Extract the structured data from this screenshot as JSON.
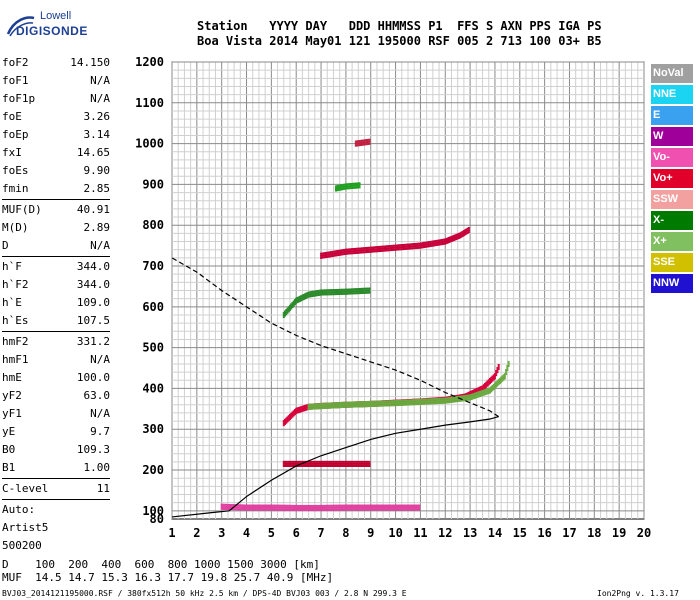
{
  "logo": {
    "line1": "Lowell",
    "line2": "DIGISONDE"
  },
  "header": {
    "labels": "Station   YYYY DAY   DDD HHMMSS P1  FFS S AXN PPS IGA PS",
    "values": "Boa Vista 2014 May01 121 195000 RSF 005 2 713 100 03+ B5"
  },
  "params": [
    {
      "name": "foF2",
      "value": "14.150"
    },
    {
      "name": "foF1",
      "value": "N/A"
    },
    {
      "name": "foF1p",
      "value": "N/A"
    },
    {
      "name": "foE",
      "value": "3.26"
    },
    {
      "name": "foEp",
      "value": "3.14"
    },
    {
      "name": "fxI",
      "value": "14.65"
    },
    {
      "name": "foEs",
      "value": "9.90"
    },
    {
      "name": "fmin",
      "value": "2.85"
    },
    {
      "name": "MUF(D)",
      "value": "40.91"
    },
    {
      "name": "M(D)",
      "value": "2.89"
    },
    {
      "name": "D",
      "value": "N/A"
    },
    {
      "name": "h`F",
      "value": "344.0"
    },
    {
      "name": "h`F2",
      "value": "344.0"
    },
    {
      "name": "h`E",
      "value": "109.0"
    },
    {
      "name": "h`Es",
      "value": "107.5"
    },
    {
      "name": "hmF2",
      "value": "331.2"
    },
    {
      "name": "hmF1",
      "value": "N/A"
    },
    {
      "name": "hmE",
      "value": "100.0"
    },
    {
      "name": "yF2",
      "value": "63.0"
    },
    {
      "name": "yF1",
      "value": "N/A"
    },
    {
      "name": "yE",
      "value": "9.7"
    },
    {
      "name": "B0",
      "value": "109.3"
    },
    {
      "name": "B1",
      "value": "1.00"
    },
    {
      "name": "C-level",
      "value": "11"
    }
  ],
  "auto": {
    "line1": "Auto:",
    "line2": "Artist5",
    "line3": "500200"
  },
  "legend": [
    {
      "label": "NoVal",
      "color": "#a0a0a0"
    },
    {
      "label": "NNE",
      "color": "#1ad4f2"
    },
    {
      "label": "E",
      "color": "#3aa0f0"
    },
    {
      "label": "W",
      "color": "#a0009a"
    },
    {
      "label": "Vo-",
      "color": "#f050b0"
    },
    {
      "label": "Vo+",
      "color": "#e0002a"
    },
    {
      "label": "SSW",
      "color": "#f2a0a0"
    },
    {
      "label": "X-",
      "color": "#007a00"
    },
    {
      "label": "X+",
      "color": "#80c060"
    },
    {
      "label": "SSE",
      "color": "#d0c000"
    },
    {
      "label": "NNW",
      "color": "#2010d0"
    }
  ],
  "footer": {
    "distance_row": "D    100  200  400  600  800 1000 1500 3000 [km]",
    "muf_row": "MUF  14.5 14.7 15.3 16.3 17.7 19.8 25.7 40.9 [MHz]"
  },
  "meta": {
    "file": "BVJ03_2014121195000.RSF / 380fx512h 50 kHz 2.5 km / DPS-4D BVJ03 003 / 2.8 N 299.3 E",
    "version": "Ion2Png v. 1.3.17"
  },
  "chart_data": {
    "type": "scatter",
    "xlim": [
      1,
      20
    ],
    "ylim": [
      80,
      1200
    ],
    "x_ticks": [
      "1",
      "2",
      "3",
      "4",
      "5",
      "6",
      "7",
      "8",
      "9",
      "10",
      "11",
      "12",
      "13",
      "14",
      "15",
      "16",
      "17",
      "18",
      "19",
      "20"
    ],
    "y_ticks": [
      "80",
      "100",
      "200",
      "300",
      "400",
      "500",
      "600",
      "700",
      "800",
      "900",
      "1000",
      "1100",
      "1200"
    ],
    "grid": true,
    "traces": [
      {
        "name": "F2 O-trace",
        "color": "#d8003a",
        "x": [
          5.5,
          6.0,
          6.5,
          7.0,
          8.0,
          9.0,
          10.0,
          11.0,
          12.0,
          12.8,
          13.5,
          14.0,
          14.2
        ],
        "y": [
          315,
          345,
          355,
          357,
          360,
          362,
          365,
          368,
          372,
          380,
          400,
          430,
          460
        ]
      },
      {
        "name": "F2 X-trace",
        "color": "#6aaa40",
        "x": [
          6.5,
          8.0,
          10.0,
          12.0,
          13.0,
          13.8,
          14.4,
          14.6
        ],
        "y": [
          355,
          360,
          364,
          370,
          378,
          395,
          430,
          470
        ]
      },
      {
        "name": "second hop",
        "color": "#c8003a",
        "x": [
          7.0,
          8.0,
          9.0,
          10.0,
          11.0,
          12.0,
          12.6,
          13.0
        ],
        "y": [
          725,
          735,
          740,
          745,
          750,
          760,
          775,
          790
        ]
      },
      {
        "name": "second hop upper",
        "color": "#2a8a2a",
        "x": [
          5.5,
          6.0,
          6.5,
          7.0,
          8.0,
          9.0
        ],
        "y": [
          580,
          615,
          630,
          635,
          637,
          640
        ]
      },
      {
        "name": "E/Es trace",
        "color": "#e040a0",
        "x": [
          3.0,
          4.0,
          5.0,
          6.0,
          7.0,
          8.0,
          9.0,
          10.0,
          11.0
        ],
        "y": [
          110,
          108,
          108,
          107,
          107,
          108,
          108,
          108,
          108
        ]
      },
      {
        "name": "Es 2x",
        "color": "#c00030",
        "x": [
          5.5,
          6.0,
          7.0,
          8.0,
          9.0
        ],
        "y": [
          215,
          215,
          215,
          215,
          215
        ]
      },
      {
        "name": "2F3 fragment",
        "color": "#20a020",
        "x": [
          7.6,
          8.0,
          8.6
        ],
        "y": [
          890,
          895,
          898
        ]
      },
      {
        "name": "3F fragment",
        "color": "#c02040",
        "x": [
          8.4,
          9.0
        ],
        "y": [
          1000,
          1005
        ]
      }
    ],
    "profile": {
      "name": "electron density profile",
      "color": "#000000",
      "x": [
        1.0,
        2.5,
        3.3,
        4.0,
        5.0,
        6.0,
        7.0,
        8.0,
        9.0,
        10.0,
        11.0,
        12.0,
        13.0,
        13.8,
        14.15
      ],
      "y": [
        85,
        95,
        100,
        135,
        175,
        210,
        235,
        255,
        275,
        290,
        300,
        310,
        318,
        325,
        331
      ]
    },
    "topside": {
      "name": "topside extrapolation",
      "color": "#000000",
      "x": [
        14.15,
        13.8,
        13.0,
        12.0,
        11.0,
        10.0,
        9.0,
        8.0,
        7.0,
        6.0,
        5.0,
        4.0,
        3.0,
        2.0,
        1.0
      ],
      "y": [
        331,
        345,
        365,
        390,
        420,
        445,
        465,
        485,
        505,
        530,
        560,
        600,
        640,
        685,
        720
      ]
    }
  }
}
